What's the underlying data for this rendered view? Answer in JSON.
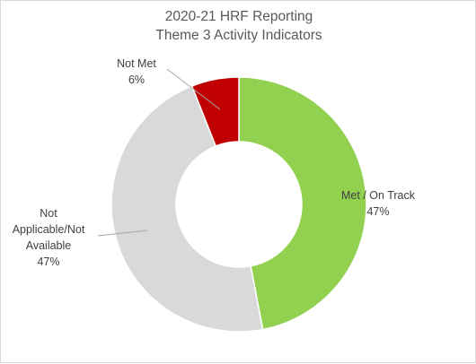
{
  "chart_data": {
    "type": "pie",
    "variant": "donut",
    "title_lines": [
      "2020-21 HRF Reporting",
      "Theme 3 Activity Indicators"
    ],
    "start_angle_deg": 0,
    "direction": "clockwise",
    "slices": [
      {
        "name": "Met / On Track",
        "value": 47,
        "label_lines": [
          "Met / On Track"
        ],
        "pct_label": "47%",
        "color": "#92d050"
      },
      {
        "name": "Not Applicable/Not Available",
        "value": 47,
        "label_lines": [
          "Not",
          "Applicable/Not",
          "Available"
        ],
        "pct_label": "47%",
        "color": "#d9d9d9"
      },
      {
        "name": "Not Met",
        "value": 6,
        "label_lines": [
          "Not Met"
        ],
        "pct_label": "6%",
        "color": "#c00000"
      }
    ]
  }
}
